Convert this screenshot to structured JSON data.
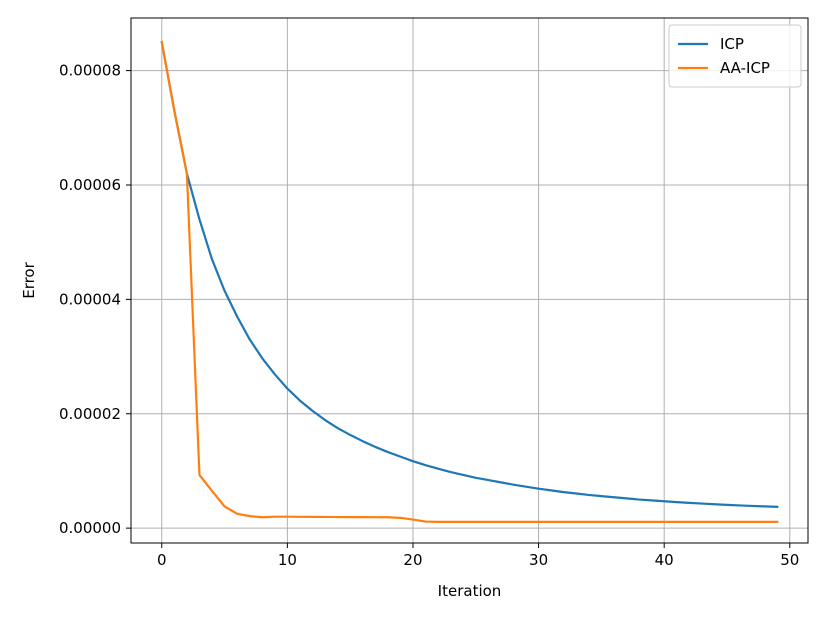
{
  "chart_data": {
    "type": "line",
    "title": "",
    "xlabel": "Iteration",
    "ylabel": "Error",
    "xlim": [
      -2.45,
      51.45
    ],
    "ylim": [
      -2.6e-06,
      8.92e-05
    ],
    "x_ticks": [
      0,
      10,
      20,
      30,
      40,
      50
    ],
    "x_tick_labels": [
      "0",
      "10",
      "20",
      "30",
      "40",
      "50"
    ],
    "y_ticks": [
      0,
      2e-05,
      4e-05,
      6e-05,
      8e-05
    ],
    "y_tick_labels": [
      "0.00000",
      "0.00002",
      "0.00004",
      "0.00006",
      "0.00008"
    ],
    "grid": true,
    "legend_position": "top-right",
    "series": [
      {
        "name": "ICP",
        "color": "#1f77b4",
        "x": [
          0,
          1,
          2,
          3,
          4,
          5,
          6,
          7,
          8,
          9,
          10,
          11,
          12,
          13,
          14,
          15,
          16,
          17,
          18,
          19,
          20,
          21,
          22,
          23,
          24,
          25,
          26,
          27,
          28,
          29,
          30,
          31,
          32,
          33,
          34,
          35,
          36,
          37,
          38,
          39,
          40,
          41,
          42,
          43,
          44,
          45,
          46,
          47,
          48,
          49
        ],
        "values": [
          8.5e-05,
          7.3e-05,
          6.2e-05,
          5.4e-05,
          4.7e-05,
          4.15e-05,
          3.7e-05,
          3.3e-05,
          2.97e-05,
          2.69e-05,
          2.44e-05,
          2.23e-05,
          2.05e-05,
          1.89e-05,
          1.75e-05,
          1.63e-05,
          1.52e-05,
          1.42e-05,
          1.33e-05,
          1.25e-05,
          1.17e-05,
          1.1e-05,
          1.04e-05,
          9.8e-06,
          9.3e-06,
          8.8e-06,
          8.4e-06,
          8e-06,
          7.6e-06,
          7.25e-06,
          6.9e-06,
          6.6e-06,
          6.3e-06,
          6.05e-06,
          5.8e-06,
          5.6e-06,
          5.4e-06,
          5.2e-06,
          5e-06,
          4.85e-06,
          4.7e-06,
          4.55e-06,
          4.42e-06,
          4.3e-06,
          4.18e-06,
          4.07e-06,
          3.97e-06,
          3.88e-06,
          3.8e-06,
          3.72e-06
        ]
      },
      {
        "name": "AA-ICP",
        "color": "#ff7f0e",
        "x": [
          0,
          1,
          2,
          3,
          4,
          5,
          6,
          7,
          8,
          9,
          10,
          11,
          12,
          13,
          14,
          15,
          16,
          17,
          18,
          19,
          20,
          21,
          22,
          23,
          24,
          25,
          26,
          27,
          28,
          29,
          30,
          31,
          32,
          33,
          34,
          35,
          36,
          37,
          38,
          39,
          40,
          41,
          42,
          43,
          44,
          45,
          46,
          47,
          48,
          49
        ],
        "values": [
          8.5e-05,
          7.3e-05,
          6.2e-05,
          9.3e-06,
          6.5e-06,
          3.8e-06,
          2.5e-06,
          2.1e-06,
          1.9e-06,
          2e-06,
          2e-06,
          1.98e-06,
          1.97e-06,
          1.96e-06,
          1.94e-06,
          1.93e-06,
          1.92e-06,
          1.91e-06,
          1.9e-06,
          1.8e-06,
          1.5e-06,
          1.15e-06,
          1.1e-06,
          1.1e-06,
          1.1e-06,
          1.1e-06,
          1.1e-06,
          1.1e-06,
          1.1e-06,
          1.1e-06,
          1.1e-06,
          1.1e-06,
          1.1e-06,
          1.1e-06,
          1.1e-06,
          1.1e-06,
          1.1e-06,
          1.1e-06,
          1.1e-06,
          1.1e-06,
          1.1e-06,
          1.1e-06,
          1.1e-06,
          1.1e-06,
          1.1e-06,
          1.1e-06,
          1.1e-06,
          1.1e-06,
          1.1e-06,
          1.1e-06
        ]
      }
    ]
  }
}
